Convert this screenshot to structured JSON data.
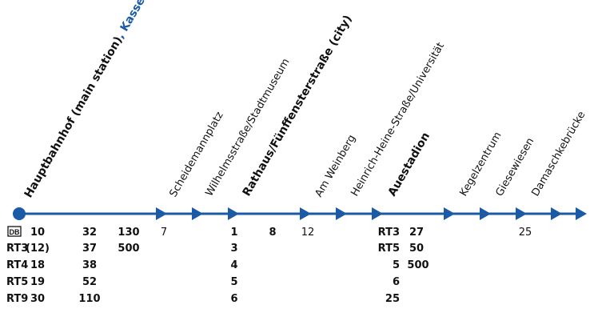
{
  "line_color": "#1a5aa6",
  "city_color": "#1a5aa6",
  "stops": [
    {
      "name": "Hauptbahnhof (main station)",
      "suffix": ", Kassel",
      "bold": true,
      "terminus": true
    },
    {
      "name": "Scheidemannplatz",
      "bold": false
    },
    {
      "name": "Wilhelmsstraße/Stadtmuseum",
      "bold": false
    },
    {
      "name": "Rathaus/Fünffensterstraße (city)",
      "bold": true
    },
    {
      "name": "Am Weinberg",
      "bold": false
    },
    {
      "name": "Heinrich-Heine-Straße/Universität",
      "bold": false
    },
    {
      "name": "Auestadion",
      "bold": true
    },
    {
      "name": "Kegelzentrum",
      "bold": false
    },
    {
      "name": "Giesewiesen",
      "bold": false
    },
    {
      "name": "Damaschkebrücke",
      "bold": false
    }
  ],
  "connections": {
    "db_badge": "DB",
    "hauptbahnhof": {
      "rows": [
        {
          "line": "",
          "a": "10",
          "b": "32",
          "c": "130"
        },
        {
          "line": "RT3",
          "a": "(12)",
          "b": "37",
          "c": "500"
        },
        {
          "line": "RT4",
          "a": "18",
          "b": "38",
          "c": ""
        },
        {
          "line": "RT5",
          "a": "19",
          "b": "52",
          "c": ""
        },
        {
          "line": "RT9",
          "a": "30",
          "b": "110",
          "c": ""
        }
      ]
    },
    "scheidemannplatz": [
      "7"
    ],
    "rathaus": {
      "col1": [
        "1",
        "3",
        "4",
        "5",
        "6"
      ],
      "col2": [
        "8"
      ]
    },
    "am_weinberg": [
      "12"
    ],
    "auestadion": {
      "col1": [
        "RT3",
        "RT5",
        "5",
        "6",
        "25"
      ],
      "col2": [
        "27",
        "50",
        "500"
      ]
    },
    "giesewiesen": [
      "25"
    ]
  }
}
